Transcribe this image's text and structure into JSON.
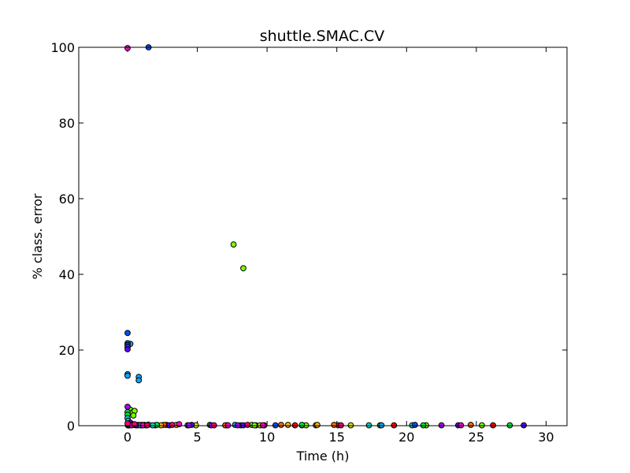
{
  "chart_data": {
    "type": "scatter",
    "title": "shuttle.SMAC.CV",
    "xlabel": "Time (h)",
    "ylabel": "% class. error",
    "xlim": [
      -3.5,
      31.5
    ],
    "ylim": [
      0,
      100
    ],
    "xticks": [
      0,
      5,
      10,
      15,
      20,
      25,
      30
    ],
    "yticks": [
      0,
      20,
      40,
      60,
      80,
      100
    ],
    "grid": false,
    "legend": "none",
    "marker_edge_color": "#000000",
    "series": [
      {
        "color": "#ff0000",
        "points": [
          [
            0.02,
            0.1
          ],
          [
            0.3,
            0.2
          ],
          [
            1.0,
            0.1
          ],
          [
            2.0,
            0.1
          ],
          [
            2.8,
            0.2
          ],
          [
            7.1,
            0.1
          ],
          [
            9.8,
            0.1
          ],
          [
            12.0,
            0.1
          ],
          [
            15.1,
            0.1
          ],
          [
            19.1,
            0.1
          ],
          [
            26.2,
            0.1
          ]
        ]
      },
      {
        "color": "#ff6a00",
        "points": [
          [
            0.05,
            0.1
          ],
          [
            0.5,
            0.2
          ],
          [
            1.5,
            0.3
          ],
          [
            2.6,
            0.2
          ],
          [
            7.0,
            0.1
          ],
          [
            11.0,
            0.2
          ],
          [
            13.5,
            0.1
          ],
          [
            14.8,
            0.2
          ],
          [
            24.6,
            0.2
          ]
        ]
      },
      {
        "color": "#ffb300",
        "points": [
          [
            0.1,
            0.1
          ],
          [
            0.7,
            0.1
          ],
          [
            2.4,
            0.1
          ],
          [
            3.5,
            0.2
          ],
          [
            9.2,
            0.1
          ],
          [
            11.5,
            0.2
          ],
          [
            13.6,
            0.2
          ]
        ]
      },
      {
        "color": "#d8e600",
        "points": [
          [
            0.15,
            0.1
          ],
          [
            1.3,
            0.1
          ],
          [
            4.9,
            0.1
          ],
          [
            9.5,
            0.1
          ],
          [
            12.5,
            0.1
          ],
          [
            16.0,
            0.1
          ]
        ]
      },
      {
        "color": "#7cff00",
        "points": [
          [
            0.2,
            4.2
          ],
          [
            0.35,
            3.5
          ],
          [
            0.5,
            3.9
          ],
          [
            0.42,
            2.7
          ],
          [
            0.8,
            0.2
          ],
          [
            7.6,
            47.9
          ],
          [
            8.3,
            41.6
          ],
          [
            8.9,
            0.2
          ],
          [
            9.1,
            0.1
          ],
          [
            12.8,
            0.1
          ],
          [
            21.4,
            0.1
          ],
          [
            25.4,
            0.1
          ]
        ]
      },
      {
        "color": "#00e641",
        "points": [
          [
            0.0,
            3.6
          ],
          [
            0.0,
            2.9
          ],
          [
            0.1,
            0.4
          ],
          [
            1.0,
            0.2
          ],
          [
            2.1,
            0.2
          ],
          [
            5.9,
            0.2
          ],
          [
            12.5,
            0.2
          ],
          [
            18.1,
            0.1
          ],
          [
            21.2,
            0.1
          ],
          [
            27.4,
            0.1
          ]
        ]
      },
      {
        "color": "#00d9c0",
        "points": [
          [
            0.0,
            2.0
          ],
          [
            0.05,
            1.3
          ],
          [
            0.3,
            0.5
          ],
          [
            1.8,
            0.1
          ],
          [
            4.3,
            0.1
          ],
          [
            17.3,
            0.1
          ],
          [
            20.4,
            0.1
          ]
        ]
      },
      {
        "color": "#0aa6ff",
        "points": [
          [
            0.0,
            13.6
          ],
          [
            0.0,
            13.2
          ],
          [
            0.2,
            21.6
          ],
          [
            0.8,
            12.9
          ],
          [
            0.8,
            12.0
          ],
          [
            0.3,
            0.3
          ],
          [
            0.9,
            0.1
          ],
          [
            7.7,
            0.2
          ],
          [
            18.2,
            0.1
          ]
        ]
      },
      {
        "color": "#0050ff",
        "points": [
          [
            0.0,
            24.5
          ],
          [
            0.0,
            21.8
          ],
          [
            0.0,
            21.3
          ],
          [
            0.0,
            20.8
          ],
          [
            1.5,
            100.0
          ],
          [
            0.6,
            0.1
          ],
          [
            8.1,
            0.1
          ],
          [
            10.6,
            0.1
          ],
          [
            20.6,
            0.2
          ]
        ]
      },
      {
        "color": "#5a00ff",
        "points": [
          [
            0.0,
            20.2
          ],
          [
            0.2,
            0.8
          ],
          [
            1.2,
            0.2
          ],
          [
            3.0,
            0.1
          ],
          [
            4.6,
            0.2
          ],
          [
            8.3,
            0.1
          ],
          [
            23.7,
            0.1
          ],
          [
            28.4,
            0.1
          ]
        ]
      },
      {
        "color": "#b000ff",
        "points": [
          [
            0.0,
            5.0
          ],
          [
            0.4,
            0.3
          ],
          [
            0.6,
            0.2
          ],
          [
            4.4,
            0.1
          ],
          [
            6.0,
            0.1
          ],
          [
            7.9,
            0.1
          ],
          [
            22.5,
            0.1
          ]
        ]
      },
      {
        "color": "#ff00d0",
        "points": [
          [
            0.0,
            99.8
          ],
          [
            0.3,
            0.1
          ],
          [
            1.1,
            0.1
          ],
          [
            3.7,
            0.4
          ],
          [
            7.2,
            0.1
          ],
          [
            9.7,
            0.1
          ],
          [
            23.9,
            0.1
          ]
        ]
      },
      {
        "color": "#ff0070",
        "points": [
          [
            0.0,
            0.6
          ],
          [
            0.5,
            0.4
          ],
          [
            1.4,
            0.1
          ],
          [
            3.2,
            0.2
          ],
          [
            6.2,
            0.1
          ],
          [
            8.6,
            0.2
          ],
          [
            15.3,
            0.1
          ]
        ]
      }
    ]
  }
}
